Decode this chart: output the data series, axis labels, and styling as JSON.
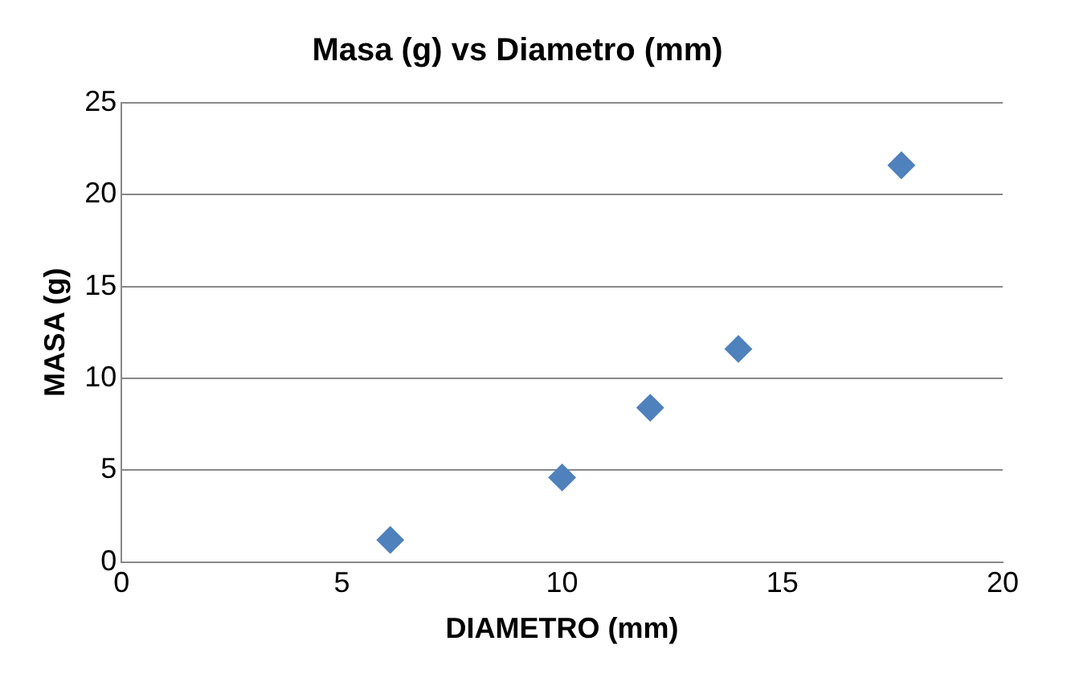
{
  "chart_data": {
    "type": "scatter",
    "title": "Masa (g) vs Diametro (mm)",
    "xlabel": "DIAMETRO (mm)",
    "ylabel": "MASA (g)",
    "x": [
      6.1,
      10,
      12,
      14,
      17.7
    ],
    "series": [
      {
        "color": "#4f81bd",
        "values": [
          1.2,
          4.6,
          8.4,
          11.6,
          21.6
        ]
      }
    ],
    "xlim": [
      0,
      20
    ],
    "xticks": [
      0,
      5,
      10,
      15,
      20
    ],
    "ylim": [
      0,
      25
    ],
    "yticks": [
      0,
      5,
      10,
      15,
      20,
      25
    ],
    "grid": "y",
    "legend": false,
    "marker": "diamond"
  }
}
